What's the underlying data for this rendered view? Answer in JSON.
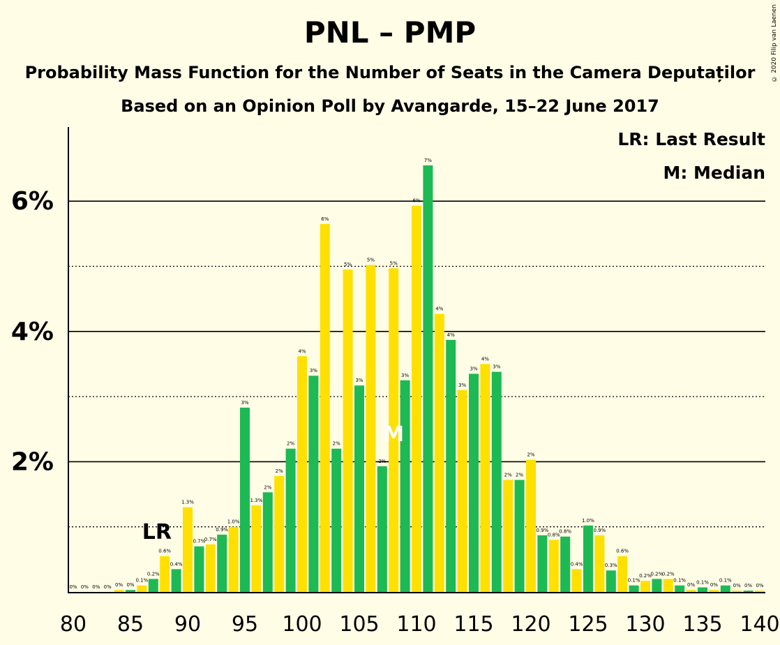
{
  "title": "PNL – PMP",
  "subtitle1": "Probability Mass Function for the Number of Seats in the Camera Deputaților",
  "subtitle2": "Based on an Opinion Poll by Avangarde, 15–22 June 2017",
  "copyright": "© 2020 Filip van Laenen",
  "legend": {
    "last_result": "LR: Last Result",
    "median": "M: Median"
  },
  "colors": {
    "green": "#1DB954",
    "yellow": "#FFE000",
    "background": "#FFFDE6"
  },
  "chart_data": {
    "type": "bar",
    "x": [
      80,
      81,
      82,
      83,
      84,
      85,
      86,
      87,
      88,
      89,
      90,
      91,
      92,
      93,
      94,
      95,
      96,
      97,
      98,
      99,
      100,
      101,
      102,
      103,
      104,
      105,
      106,
      107,
      108,
      109,
      110,
      111,
      112,
      113,
      114,
      115,
      116,
      117,
      118,
      119,
      120,
      121,
      122,
      123,
      124,
      125,
      126,
      127,
      128,
      129,
      130,
      131,
      132,
      133,
      134,
      135,
      136,
      137,
      138,
      139,
      140
    ],
    "values": [
      0,
      0,
      0,
      0,
      0.03,
      0.03,
      0.1,
      0.2,
      0.55,
      0.35,
      1.3,
      0.7,
      0.73,
      0.88,
      1.0,
      2.83,
      1.33,
      1.53,
      1.78,
      2.2,
      3.62,
      3.32,
      5.65,
      2.2,
      4.95,
      3.17,
      5.02,
      1.93,
      4.97,
      3.25,
      5.93,
      6.55,
      4.27,
      3.87,
      3.1,
      3.35,
      3.5,
      3.38,
      1.72,
      1.72,
      2.03,
      0.87,
      0.8,
      0.85,
      0.35,
      1.02,
      0.87,
      0.33,
      0.55,
      0.1,
      0.17,
      0.2,
      0.2,
      0.1,
      0.03,
      0.07,
      0.03,
      0.1,
      0.02,
      0.02,
      0.02
    ],
    "labels": [
      "0%",
      "0%",
      "0%",
      "0%",
      "0%",
      "0%",
      "0.1%",
      "0.2%",
      "0.6%",
      "0.4%",
      "1.3%",
      "0.7%",
      "0.7%",
      "0.9%",
      "1.0%",
      "3%",
      "1.3%",
      "2%",
      "2%",
      "2%",
      "4%",
      "3%",
      "6%",
      "2%",
      "5%",
      "3%",
      "5%",
      "2%",
      "5%",
      "3%",
      "6%",
      "7%",
      "4%",
      "4%",
      "3%",
      "3%",
      "4%",
      "3%",
      "2%",
      "2%",
      "2%",
      "0.9%",
      "0.8%",
      "0.8%",
      "0.4%",
      "1.0%",
      "0.9%",
      "0.3%",
      "0.6%",
      "0.1%",
      "0.2%",
      "0.2%",
      "0.2%",
      "0.1%",
      "0%",
      "0.1%",
      "0%",
      "0.1%",
      "0%",
      "0%",
      "0%"
    ],
    "xticks": [
      80,
      85,
      90,
      95,
      100,
      105,
      110,
      115,
      120,
      125,
      130,
      135,
      140
    ],
    "xtick_labels": [
      "80",
      "85",
      "90",
      "95",
      "100",
      "105",
      "110",
      "115",
      "120",
      "125",
      "130",
      "135",
      "140"
    ],
    "yticks": [
      2,
      4,
      6
    ],
    "ytick_labels": [
      "2%",
      "4%",
      "6%"
    ],
    "ylim": [
      0,
      7.1
    ],
    "xlim": [
      80,
      140
    ],
    "grid_solid": [
      2,
      4,
      6
    ],
    "grid_dotted": [
      1,
      3,
      5
    ],
    "last_result": {
      "seat": 87,
      "label": "LR"
    },
    "median": {
      "seat": 108,
      "label": "M"
    },
    "legend_position": "top-right"
  }
}
